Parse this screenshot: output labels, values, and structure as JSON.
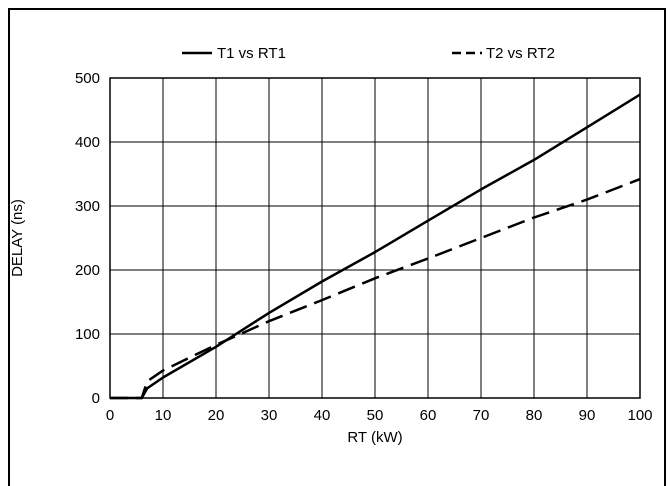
{
  "chart_data": {
    "type": "line",
    "xlabel": "RT (kW)",
    "ylabel": "DELAY (ns)",
    "xlim": [
      0,
      100
    ],
    "ylim": [
      0,
      500
    ],
    "x_ticks": [
      0,
      10,
      20,
      30,
      40,
      50,
      60,
      70,
      80,
      90,
      100
    ],
    "y_ticks": [
      0,
      100,
      200,
      300,
      400,
      500
    ],
    "grid": true,
    "legend_position": "top",
    "series": [
      {
        "name": "T1 vs RT1",
        "style": "solid",
        "color": "#000000",
        "points": [
          [
            0,
            0
          ],
          [
            6,
            0
          ],
          [
            7,
            15
          ],
          [
            10,
            32
          ],
          [
            20,
            80
          ],
          [
            30,
            133
          ],
          [
            40,
            182
          ],
          [
            50,
            228
          ],
          [
            60,
            277
          ],
          [
            70,
            326
          ],
          [
            80,
            372
          ],
          [
            90,
            423
          ],
          [
            100,
            474
          ]
        ]
      },
      {
        "name": "T2 vs RT2",
        "style": "dashed",
        "color": "#000000",
        "points": [
          [
            0,
            0
          ],
          [
            6,
            0
          ],
          [
            7,
            26
          ],
          [
            10,
            43
          ],
          [
            20,
            83
          ],
          [
            30,
            120
          ],
          [
            40,
            153
          ],
          [
            50,
            187
          ],
          [
            60,
            218
          ],
          [
            70,
            250
          ],
          [
            80,
            282
          ],
          [
            90,
            310
          ],
          [
            100,
            342
          ]
        ]
      }
    ]
  }
}
